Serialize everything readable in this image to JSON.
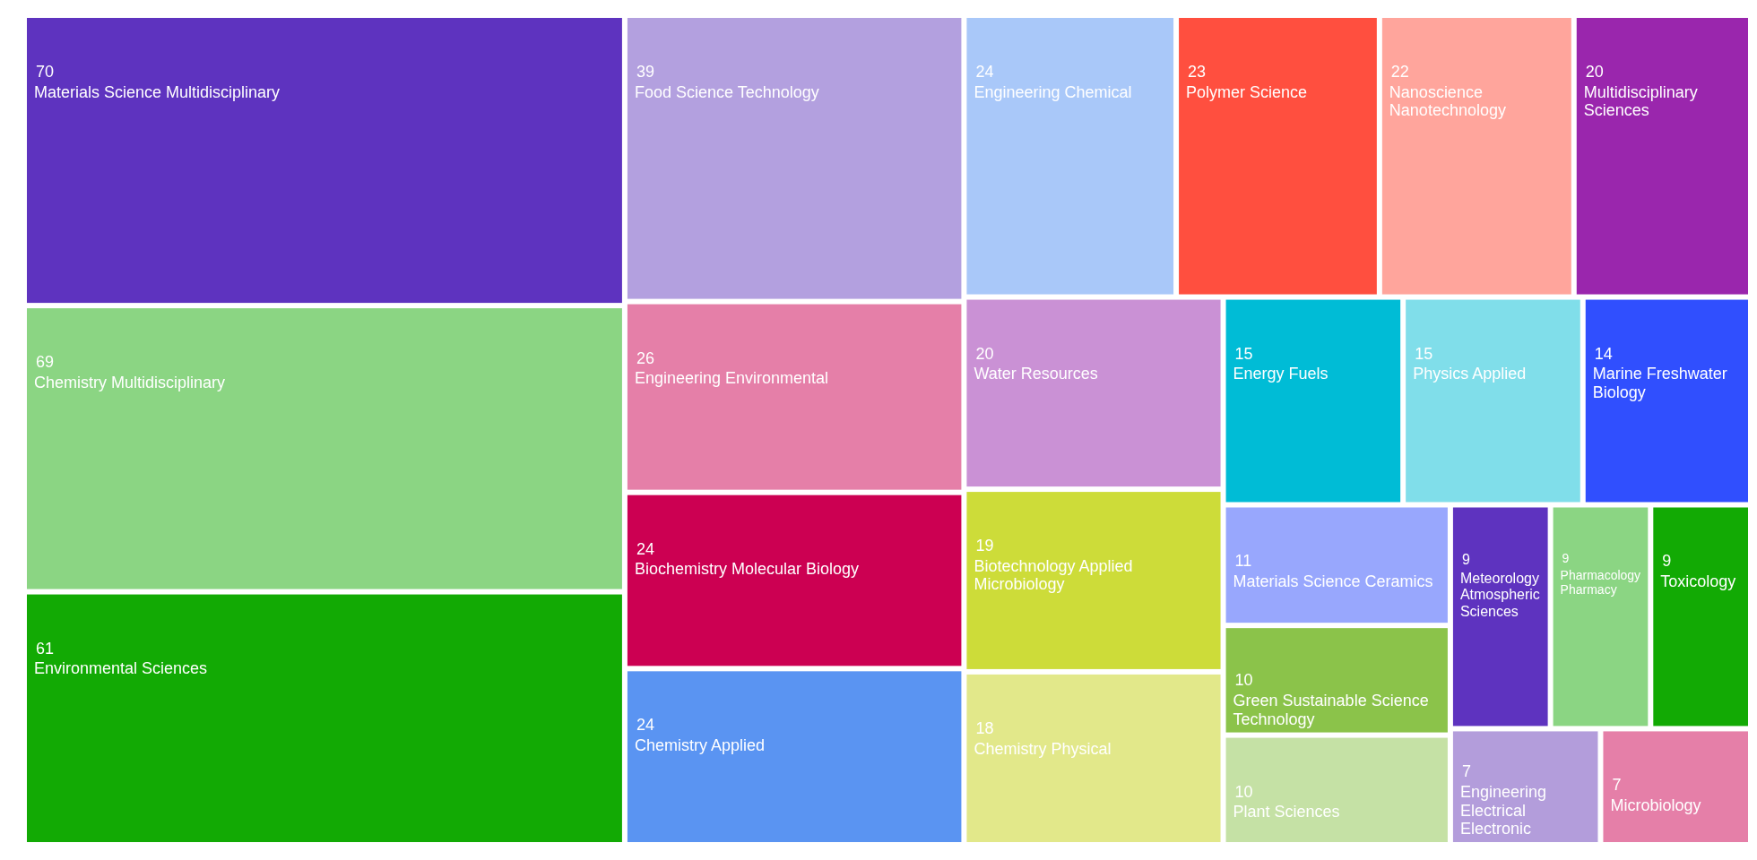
{
  "chart_data": {
    "type": "other",
    "categories": [
      "Materials Science Multidisciplinary",
      "Chemistry Multidisciplinary",
      "Environmental Sciences",
      "Food Science Technology",
      "Engineering Environmental",
      "Biochemistry Molecular Biology",
      "Chemistry Applied",
      "Engineering Chemical",
      "Polymer Science",
      "Nanoscience Nanotechnology",
      "Multidisciplinary Sciences",
      "Water Resources",
      "Biotechnology Applied Microbiology",
      "Chemistry Physical",
      "Energy Fuels",
      "Physics Applied",
      "Marine Freshwater Biology",
      "Materials Science Ceramics",
      "Green Sustainable Science Technology",
      "Plant Sciences",
      "Meteorology Atmospheric Sciences",
      "Pharmacology Pharmacy",
      "Toxicology",
      "Engineering Electrical Electronic",
      "Microbiology"
    ],
    "values": [
      70,
      69,
      61,
      39,
      26,
      24,
      24,
      24,
      23,
      22,
      20,
      20,
      19,
      18,
      15,
      15,
      14,
      11,
      10,
      10,
      9,
      9,
      9,
      7,
      7
    ],
    "colors": [
      "#5e33bf",
      "#8bd583",
      "#12aa04",
      "#b3a0df",
      "#e57fa8",
      "#cc0052",
      "#5a94f2",
      "#a9c8f9",
      "#ff4f3f",
      "#ffa59c",
      "#9a26ad",
      "#ca91d5",
      "#cddc39",
      "#e2e88a",
      "#00bcd6",
      "#80deea",
      "#304ffe",
      "#98a7fd",
      "#8bc34a",
      "#c5e1a5",
      "#5e33bf",
      "#8bd583",
      "#12aa04",
      "#b39ddb",
      "#e57fa8"
    ],
    "data_labels": true
  }
}
